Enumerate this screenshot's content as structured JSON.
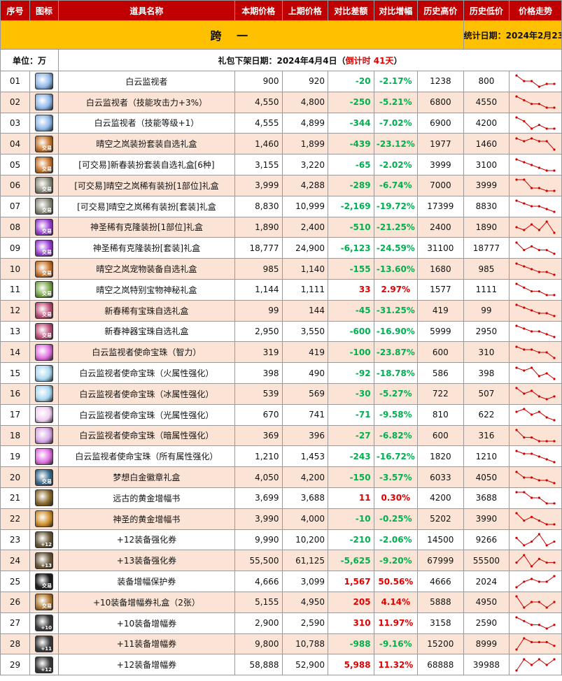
{
  "header": {
    "title": "跨 一",
    "stat_date": "统计日期：2024年2月23日",
    "unit": "单位：万",
    "release_prefix": "礼包下架日期：2024年4月4日（",
    "countdown": "倒计时 41天",
    "release_suffix": "）"
  },
  "columns": {
    "no": "序号",
    "icon": "图标",
    "name": "道具名称",
    "cur": "本期价格",
    "prev": "上期价格",
    "diff": "对比差额",
    "pct": "对比增幅",
    "high": "历史高价",
    "low": "历史低价",
    "trend": "价格走势"
  },
  "colors": {
    "header_bg": "#ffc000",
    "column_header_bg": "#c00000",
    "row_alt_bg": "#fbe4d5",
    "up": "#e00000",
    "down": "#00b050",
    "trend_line": "#d00000"
  },
  "rows": [
    {
      "no": "01",
      "name": "白云监视者",
      "cur": "900",
      "prev": "920",
      "diff": "-20",
      "pct": "-2.17%",
      "high": "1238",
      "low": "800",
      "icon": "blue-crystal-icon",
      "icon_color": "#8fb8e8",
      "trend": [
        5,
        3,
        3,
        1,
        2,
        2
      ]
    },
    {
      "no": "02",
      "name": "白云监视者（技能攻击力+3%）",
      "cur": "4,550",
      "prev": "4,800",
      "diff": "-250",
      "pct": "-5.21%",
      "high": "6800",
      "low": "4550",
      "icon": "blue-crystal-icon",
      "icon_color": "#8fb8e8",
      "trend": [
        5,
        4,
        3,
        3,
        2,
        2
      ]
    },
    {
      "no": "03",
      "name": "白云监视者（技能等级+1）",
      "cur": "4,555",
      "prev": "4,899",
      "diff": "-344",
      "pct": "-7.02%",
      "high": "6900",
      "low": "4200",
      "icon": "blue-crystal-icon",
      "icon_color": "#8fb8e8",
      "trend": [
        5,
        4,
        2,
        3,
        2,
        2
      ]
    },
    {
      "no": "04",
      "name": "晴空之岚装扮套装自选礼盒",
      "cur": "1,460",
      "prev": "1,899",
      "diff": "-439",
      "pct": "-23.12%",
      "high": "1977",
      "low": "1460",
      "icon": "gift-box-icon",
      "icon_color": "#c8742a",
      "tag": "交易",
      "trend": [
        5,
        4,
        5,
        4,
        4,
        1
      ]
    },
    {
      "no": "05",
      "name": "[可交易]新春装扮套装自选礼盒[6种]",
      "cur": "3,155",
      "prev": "3,220",
      "diff": "-65",
      "pct": "-2.02%",
      "high": "3999",
      "low": "3100",
      "icon": "gift-box-icon",
      "icon_color": "#c8742a",
      "tag": "交易",
      "trend": [
        5,
        4,
        3,
        2,
        1,
        1
      ]
    },
    {
      "no": "06",
      "name": "[可交易]晴空之岚稀有装扮[1部位]礼盒",
      "cur": "3,999",
      "prev": "4,288",
      "diff": "-289",
      "pct": "-6.74%",
      "high": "7000",
      "low": "3999",
      "icon": "gift-box-icon",
      "icon_color": "#8a8a7a",
      "tag": "交易",
      "trend": [
        5,
        5,
        2,
        2,
        1,
        1
      ]
    },
    {
      "no": "07",
      "name": "[可交易]晴空之岚稀有装扮[套装]礼盒",
      "cur": "8,830",
      "prev": "10,999",
      "diff": "-2,169",
      "pct": "-19.72%",
      "high": "17399",
      "low": "8830",
      "icon": "gift-box-icon",
      "icon_color": "#8a8a7a",
      "tag": "交易",
      "trend": [
        5,
        4,
        3,
        3,
        2,
        1
      ]
    },
    {
      "no": "08",
      "name": "神圣稀有克隆装扮[1部位]礼盒",
      "cur": "1,890",
      "prev": "2,400",
      "diff": "-510",
      "pct": "-21.25%",
      "high": "2400",
      "low": "1890",
      "icon": "purple-box-icon",
      "icon_color": "#9b3fd6",
      "tag": "交易",
      "trend": [
        3,
        2,
        4,
        2,
        5,
        1
      ]
    },
    {
      "no": "09",
      "name": "神圣稀有克隆装扮[套装]礼盒",
      "cur": "18,777",
      "prev": "24,900",
      "diff": "-6,123",
      "pct": "-24.59%",
      "high": "31100",
      "low": "18777",
      "icon": "purple-box-icon",
      "icon_color": "#9b3fd6",
      "tag": "交易",
      "trend": [
        5,
        3,
        4,
        3,
        3,
        2
      ]
    },
    {
      "no": "10",
      "name": "晴空之岚宠物装备自选礼盒",
      "cur": "985",
      "prev": "1,140",
      "diff": "-155",
      "pct": "-13.60%",
      "high": "1680",
      "low": "985",
      "icon": "gift-box-icon",
      "icon_color": "#c8742a",
      "tag": "交易",
      "trend": [
        5,
        4,
        3,
        2,
        2,
        1
      ]
    },
    {
      "no": "11",
      "name": "晴空之岚特别宝物神秘礼盒",
      "cur": "1,144",
      "prev": "1,111",
      "diff": "33",
      "pct": "2.97%",
      "high": "1577",
      "low": "1111",
      "icon": "gift-box-icon",
      "icon_color": "#7aa84a",
      "tag": "交易",
      "trend": [
        5,
        4,
        3,
        3,
        2,
        2
      ]
    },
    {
      "no": "12",
      "name": "新春稀有宝珠自选礼盒",
      "cur": "99",
      "prev": "144",
      "diff": "-45",
      "pct": "-31.25%",
      "high": "419",
      "low": "99",
      "icon": "gift-box-icon",
      "icon_color": "#c0507a",
      "tag": "交易",
      "trend": [
        5,
        4,
        3,
        2,
        2,
        1
      ]
    },
    {
      "no": "13",
      "name": "新春神器宝珠自选礼盒",
      "cur": "2,950",
      "prev": "3,550",
      "diff": "-600",
      "pct": "-16.90%",
      "high": "5999",
      "low": "2950",
      "icon": "gift-box-icon",
      "icon_color": "#c0507a",
      "tag": "交易",
      "trend": [
        5,
        4,
        3,
        3,
        2,
        1
      ]
    },
    {
      "no": "14",
      "name": "白云监视者使命宝珠（智力）",
      "cur": "319",
      "prev": "419",
      "diff": "-100",
      "pct": "-23.87%",
      "high": "600",
      "low": "310",
      "icon": "orb-icon",
      "icon_color": "#e070e0",
      "trend": [
        5,
        4,
        4,
        3,
        3,
        1
      ]
    },
    {
      "no": "15",
      "name": "白云监视者使命宝珠（火属性强化）",
      "cur": "398",
      "prev": "490",
      "diff": "-92",
      "pct": "-18.78%",
      "high": "586",
      "low": "398",
      "icon": "orb-icon",
      "icon_color": "#a8d8f0",
      "trend": [
        5,
        4,
        5,
        2,
        3,
        1
      ]
    },
    {
      "no": "16",
      "name": "白云监视者使命宝珠（冰属性强化）",
      "cur": "539",
      "prev": "569",
      "diff": "-30",
      "pct": "-5.27%",
      "high": "722",
      "low": "507",
      "icon": "orb-icon",
      "icon_color": "#a8d8f0",
      "trend": [
        5,
        3,
        4,
        2,
        1,
        2
      ]
    },
    {
      "no": "17",
      "name": "白云监视者使命宝珠（光属性强化）",
      "cur": "670",
      "prev": "741",
      "diff": "-71",
      "pct": "-9.58%",
      "high": "810",
      "low": "622",
      "icon": "orb-icon",
      "icon_color": "#f0d0f0",
      "trend": [
        4,
        5,
        3,
        4,
        2,
        1
      ]
    },
    {
      "no": "18",
      "name": "白云监视者使命宝珠（暗属性强化）",
      "cur": "369",
      "prev": "396",
      "diff": "-27",
      "pct": "-6.82%",
      "high": "600",
      "low": "316",
      "icon": "orb-icon",
      "icon_color": "#d8a8e8",
      "trend": [
        5,
        3,
        3,
        2,
        2,
        2
      ]
    },
    {
      "no": "19",
      "name": "白云监视者使命宝珠（所有属性强化）",
      "cur": "1,210",
      "prev": "1,453",
      "diff": "-243",
      "pct": "-16.72%",
      "high": "1820",
      "low": "1210",
      "icon": "orb-icon",
      "icon_color": "#e070e0",
      "trend": [
        5,
        4,
        4,
        3,
        2,
        1
      ]
    },
    {
      "no": "20",
      "name": "梦想白金徽章礼盒",
      "cur": "4,050",
      "prev": "4,200",
      "diff": "-150",
      "pct": "-3.57%",
      "high": "6033",
      "low": "4050",
      "icon": "badge-icon",
      "icon_color": "#3a6a8a",
      "tag": "交易",
      "trend": [
        5,
        3,
        3,
        2,
        2,
        1
      ]
    },
    {
      "no": "21",
      "name": "远古的黄金增幅书",
      "cur": "3,699",
      "prev": "3,688",
      "diff": "11",
      "pct": "0.30%",
      "high": "4200",
      "low": "3688",
      "icon": "gold-book-icon",
      "icon_color": "#8a6a2a",
      "trend": [
        4,
        4,
        3,
        3,
        2,
        2
      ]
    },
    {
      "no": "22",
      "name": "神圣的黄金增幅书",
      "cur": "3,990",
      "prev": "4,000",
      "diff": "-10",
      "pct": "-0.25%",
      "high": "5202",
      "low": "3990",
      "icon": "gold-book-icon",
      "icon_color": "#d0902a",
      "trend": [
        5,
        3,
        4,
        3,
        2,
        2
      ]
    },
    {
      "no": "23",
      "name": "+12装备强化券",
      "cur": "9,990",
      "prev": "10,200",
      "diff": "-210",
      "pct": "-2.06%",
      "high": "14500",
      "low": "9266",
      "icon": "ticket-icon",
      "icon_color": "#6a5a3a",
      "tag": "+12",
      "trend": [
        4,
        2,
        3,
        5,
        2,
        3
      ]
    },
    {
      "no": "24",
      "name": "+13装备强化券",
      "cur": "55,500",
      "prev": "61,125",
      "diff": "-5,625",
      "pct": "-9.20%",
      "high": "67999",
      "low": "55500",
      "icon": "ticket-icon",
      "icon_color": "#6a5a3a",
      "tag": "+13",
      "trend": [
        3,
        5,
        2,
        4,
        3,
        3
      ]
    },
    {
      "no": "25",
      "name": "装备增幅保护券",
      "cur": "4,666",
      "prev": "3,099",
      "diff": "1,567",
      "pct": "50.56%",
      "high": "4666",
      "low": "2024",
      "icon": "shield-ticket-icon",
      "icon_color": "#1a1a1a",
      "tag": "交易",
      "trend": [
        1,
        3,
        4,
        3,
        3,
        5
      ]
    },
    {
      "no": "26",
      "name": "+10装备增幅券礼盒（2张）",
      "cur": "5,155",
      "prev": "4,950",
      "diff": "205",
      "pct": "4.14%",
      "high": "5888",
      "low": "4950",
      "icon": "ticket-box-icon",
      "icon_color": "#b07a30",
      "tag": "交易",
      "trend": [
        4,
        2,
        3,
        3,
        2,
        3
      ]
    },
    {
      "no": "27",
      "name": "+10装备增幅券",
      "cur": "2,900",
      "prev": "2,590",
      "diff": "310",
      "pct": "11.97%",
      "high": "3158",
      "low": "2590",
      "icon": "ticket-icon",
      "icon_color": "#3a3a3a",
      "tag": "+10",
      "trend": [
        5,
        4,
        3,
        3,
        2,
        3
      ]
    },
    {
      "no": "28",
      "name": "+11装备增幅券",
      "cur": "9,800",
      "prev": "10,788",
      "diff": "-988",
      "pct": "-9.16%",
      "high": "15200",
      "low": "8999",
      "icon": "ticket-icon",
      "icon_color": "#3a3a3a",
      "tag": "+11",
      "trend": [
        1,
        4,
        3,
        3,
        3,
        2
      ]
    },
    {
      "no": "29",
      "name": "+12装备增幅券",
      "cur": "58,888",
      "prev": "52,900",
      "diff": "5,988",
      "pct": "11.32%",
      "high": "68888",
      "low": "39988",
      "icon": "ticket-icon",
      "icon_color": "#3a3a3a",
      "tag": "+12",
      "trend": [
        2,
        4,
        3,
        4,
        3,
        4
      ]
    }
  ]
}
